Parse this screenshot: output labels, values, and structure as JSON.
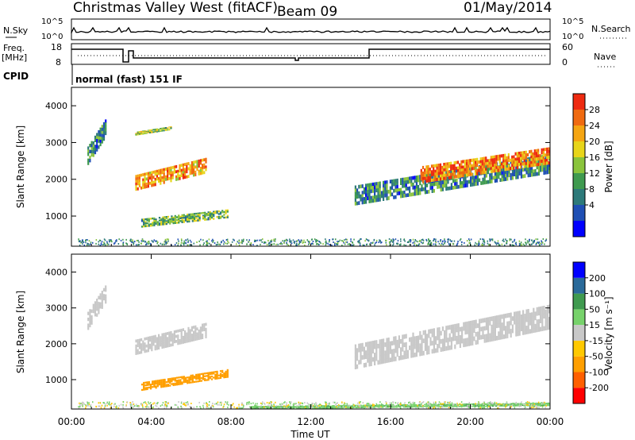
{
  "header": {
    "station": "Christmas Valley West (fitACF)",
    "beam": "Beam 09",
    "date": "01/May/2014"
  },
  "noise_panel": {
    "left_label": "N.Sky",
    "right_label": "N.Search",
    "ticks_left": [
      "10^5",
      "10^0"
    ],
    "ticks_right": [
      "10^5",
      "10^0"
    ]
  },
  "freq_panel": {
    "left_label_1": "Freq.",
    "left_label_2": "[MHz]",
    "right_label": "Nave",
    "ticks_left": [
      "18",
      "8"
    ],
    "ticks_right": [
      "60",
      "0"
    ]
  },
  "cpid": {
    "label": "CPID",
    "text": "normal (fast) 151 IF"
  },
  "colors": {
    "power_scale": [
      "#0000ff",
      "#1f4fb4",
      "#2d7a7a",
      "#3f9a4f",
      "#8ac43c",
      "#e8d51a",
      "#f5a512",
      "#f06a10",
      "#ee2a10"
    ],
    "velocity_scale": [
      "#ff0000",
      "#ff6000",
      "#ff9f00",
      "#ffc900",
      "#c8c8c8",
      "#77d26b",
      "#3f9a4f",
      "#2a6a9a",
      "#0000ff"
    ]
  },
  "chart_data": [
    {
      "type": "heatmap",
      "panel": "power",
      "xlabel": "",
      "ylabel": "Slant Range [km]",
      "yticks": [
        "1000",
        "2000",
        "3000",
        "4000"
      ],
      "ylim": [
        180,
        4500
      ],
      "xlim": [
        0,
        24
      ],
      "colorbar_label": "Power [dB]",
      "colorbar_ticks": [
        "4",
        "8",
        "12",
        "16",
        "20",
        "24",
        "28"
      ],
      "features": [
        {
          "t_start": 0.8,
          "t_end": 1.8,
          "r_start": 2400,
          "r_end": 3700,
          "value": 10
        },
        {
          "t_start": 3.2,
          "t_end": 6.8,
          "r_start": 1700,
          "r_end": 2800,
          "value": 24
        },
        {
          "t_start": 3.2,
          "t_end": 5.0,
          "r_start": 3200,
          "r_end": 3450,
          "value": 16
        },
        {
          "t_start": 3.5,
          "t_end": 7.9,
          "r_start": 700,
          "r_end": 1300,
          "value": 14
        },
        {
          "t_start": 14.2,
          "t_end": 24.0,
          "r_start": 1300,
          "r_end": 2700,
          "value": 10
        },
        {
          "t_start": 17.5,
          "t_end": 24.0,
          "r_start": 1900,
          "r_end": 3100,
          "value": 26
        }
      ]
    },
    {
      "type": "heatmap",
      "panel": "velocity",
      "xlabel": "Time UT",
      "ylabel": "Slant Range [km]",
      "xticks": [
        "00:00",
        "04:00",
        "08:00",
        "12:00",
        "16:00",
        "20:00",
        "00:00"
      ],
      "yticks": [
        "1000",
        "2000",
        "3000",
        "4000"
      ],
      "ylim": [
        180,
        4500
      ],
      "xlim": [
        0,
        24
      ],
      "colorbar_label": "Velocity [m s⁻¹]",
      "colorbar_ticks": [
        "200",
        "100",
        "50",
        "15",
        "-15",
        "-50",
        "-100",
        "-200"
      ],
      "features": [
        {
          "t_start": 0.8,
          "t_end": 1.8,
          "r_start": 2400,
          "r_end": 3700,
          "value": 0
        },
        {
          "t_start": 3.2,
          "t_end": 6.8,
          "r_start": 1700,
          "r_end": 2800,
          "value": 0
        },
        {
          "t_start": 3.5,
          "t_end": 7.9,
          "r_start": 700,
          "r_end": 1300,
          "value": -80
        },
        {
          "t_start": 9.0,
          "t_end": 24.0,
          "r_start": 180,
          "r_end": 400,
          "value": 40
        },
        {
          "t_start": 14.2,
          "t_end": 24.0,
          "r_start": 1300,
          "r_end": 3100,
          "value": 0
        }
      ]
    }
  ]
}
